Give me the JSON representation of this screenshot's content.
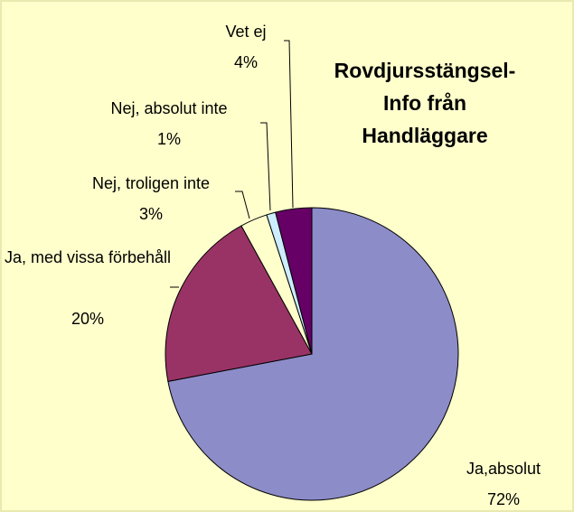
{
  "chart_data": {
    "type": "pie",
    "title": "Rovdjursstängsel-Info från Handläggare",
    "categories": [
      "Ja,absolut",
      "Ja, med vissa förbehåll",
      "Nej, troligen inte",
      "Nej, absolut inte",
      "Vet ej"
    ],
    "values": [
      72,
      20,
      3,
      1,
      4
    ],
    "value_labels": [
      "72%",
      "20%",
      "3%",
      "1%",
      "4%"
    ],
    "colors": [
      "#8c8cc8",
      "#993366",
      "#ffffcc",
      "#ccecff",
      "#660066"
    ]
  }
}
